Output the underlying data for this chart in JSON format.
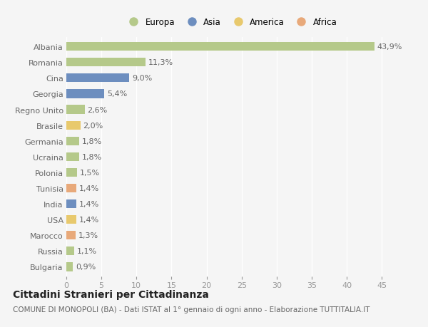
{
  "countries": [
    "Albania",
    "Romania",
    "Cina",
    "Georgia",
    "Regno Unito",
    "Brasile",
    "Germania",
    "Ucraina",
    "Polonia",
    "Tunisia",
    "India",
    "USA",
    "Marocco",
    "Russia",
    "Bulgaria"
  ],
  "values": [
    43.9,
    11.3,
    9.0,
    5.4,
    2.6,
    2.0,
    1.8,
    1.8,
    1.5,
    1.4,
    1.4,
    1.4,
    1.3,
    1.1,
    0.9
  ],
  "labels": [
    "43,9%",
    "11,3%",
    "9,0%",
    "5,4%",
    "2,6%",
    "2,0%",
    "1,8%",
    "1,8%",
    "1,5%",
    "1,4%",
    "1,4%",
    "1,4%",
    "1,3%",
    "1,1%",
    "0,9%"
  ],
  "colors": [
    "#b5c98a",
    "#b5c98a",
    "#6d8ebf",
    "#6d8ebf",
    "#b5c98a",
    "#e8c96d",
    "#b5c98a",
    "#b5c98a",
    "#b5c98a",
    "#e8a97a",
    "#6d8ebf",
    "#e8c96d",
    "#e8a97a",
    "#b5c98a",
    "#b5c98a"
  ],
  "continent_colors": {
    "Europa": "#b5c98a",
    "Asia": "#6d8ebf",
    "America": "#e8c96d",
    "Africa": "#e8a97a"
  },
  "legend_labels": [
    "Europa",
    "Asia",
    "America",
    "Africa"
  ],
  "xlim": [
    0,
    47
  ],
  "xticks": [
    0,
    5,
    10,
    15,
    20,
    25,
    30,
    35,
    40,
    45
  ],
  "title": "Cittadini Stranieri per Cittadinanza",
  "subtitle": "COMUNE DI MONOPOLI (BA) - Dati ISTAT al 1° gennaio di ogni anno - Elaborazione TUTTITALIA.IT",
  "background_color": "#f5f5f5",
  "grid_color": "#ffffff",
  "bar_height": 0.55,
  "title_fontsize": 10,
  "subtitle_fontsize": 7.5,
  "label_fontsize": 8,
  "tick_fontsize": 8,
  "legend_fontsize": 8.5
}
